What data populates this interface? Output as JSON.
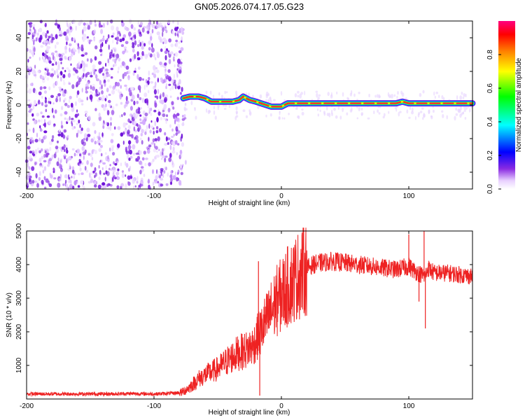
{
  "title": "GN05.2026.074.17.05.G23",
  "chart_data": [
    {
      "type": "heatmap",
      "title": "GN05.2026.074.17.05.G23",
      "xlabel": "Height of straight line (km)",
      "ylabel": "Frequency (Hz)",
      "xlim": [
        -200,
        150
      ],
      "ylim": [
        -50,
        50
      ],
      "xticks": [
        -200,
        -100,
        0,
        100
      ],
      "yticks": [
        -40,
        -20,
        0,
        20,
        40
      ],
      "noise_region_x": [
        -200,
        -77
      ],
      "signal_track": {
        "x": [
          -77,
          -72,
          -65,
          -60,
          -55,
          -45,
          -38,
          -33,
          -30,
          -25,
          -20,
          -16,
          -12,
          -8,
          -5,
          0,
          5,
          10,
          20,
          30,
          40,
          50,
          60,
          70,
          80,
          90,
          95,
          100,
          110,
          120,
          130,
          140,
          150
        ],
        "freq_hz": [
          4,
          5,
          5,
          4,
          2,
          2,
          2,
          3,
          5,
          3,
          2,
          1,
          0,
          -1,
          -1,
          -1,
          1,
          1,
          1,
          1,
          1,
          1,
          1,
          1,
          1,
          1,
          2,
          1,
          1,
          1,
          1,
          1,
          1
        ]
      },
      "colorbar": {
        "label": "Normalized spectral amplitude",
        "range": [
          0,
          1
        ],
        "ticks": [
          "0.0",
          "0.2",
          "0.4",
          "0.6",
          "0.8"
        ]
      }
    },
    {
      "type": "line",
      "xlabel": "Height of straight line (km)",
      "ylabel": "SNR (10 * v/v)",
      "xlim": [
        -200,
        150
      ],
      "ylim": [
        0,
        5000
      ],
      "xticks": [
        -200,
        -100,
        0,
        100
      ],
      "yticks": [
        1000,
        2000,
        3000,
        4000,
        5000
      ],
      "series": [
        {
          "name": "SNR",
          "color": "#ee2222",
          "x": [
            -200,
            -180,
            -160,
            -140,
            -120,
            -100,
            -85,
            -78,
            -72,
            -65,
            -58,
            -50,
            -42,
            -35,
            -28,
            -22,
            -18,
            -16,
            -14,
            -12,
            -8,
            -4,
            0,
            5,
            10,
            15,
            20,
            25,
            30,
            40,
            50,
            60,
            70,
            80,
            90,
            100,
            105,
            110,
            113,
            115,
            120,
            130,
            140,
            150
          ],
          "y": [
            150,
            150,
            150,
            150,
            160,
            150,
            170,
            200,
            350,
            600,
            750,
            900,
            1150,
            1350,
            1450,
            1600,
            1900,
            2000,
            2200,
            2300,
            2600,
            2900,
            3100,
            3350,
            3550,
            3750,
            3900,
            4000,
            4050,
            4100,
            4050,
            4000,
            3950,
            3900,
            3850,
            3950,
            3800,
            3700,
            3650,
            3900,
            3750,
            3750,
            3700,
            3650
          ],
          "spikes": [
            {
              "x": -18,
              "y": 4100
            },
            {
              "x": -17,
              "y": 100
            },
            {
              "x": 100,
              "y": 4900
            },
            {
              "x": 112,
              "y": 5050
            },
            {
              "x": 113,
              "y": 2100
            },
            {
              "x": 108,
              "y": 2900
            }
          ]
        }
      ]
    }
  ]
}
